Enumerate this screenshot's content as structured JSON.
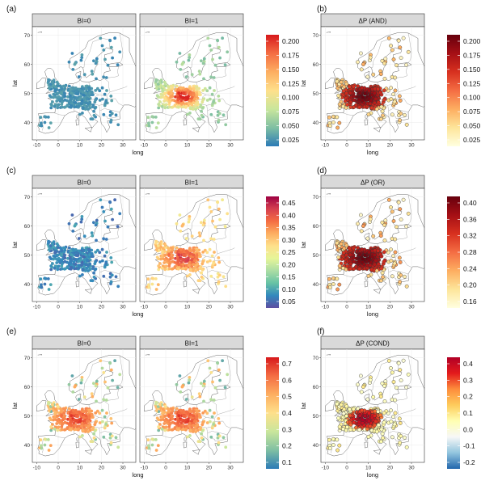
{
  "panels": [
    {
      "id": "a",
      "label": "(a)",
      "type": "scatter-map",
      "facets": [
        "BI=0",
        "BI=1"
      ],
      "xlabel": "long",
      "ylabel": "lat",
      "xlim": [
        -12,
        36
      ],
      "ylim": [
        34,
        73
      ],
      "xticks": [
        "-10",
        "0",
        "10",
        "20",
        "30"
      ],
      "yticks": [
        "40",
        "50",
        "60",
        "70"
      ],
      "colorbar": {
        "ticks": [
          "0.025",
          "0.050",
          "0.075",
          "0.100",
          "0.125",
          "0.150",
          "0.175",
          "0.200"
        ],
        "colors": [
          "#2c7bb6",
          "#7fbfa3",
          "#c9e69c",
          "#fee08b",
          "#fdae61",
          "#f46d43",
          "#d7191c"
        ]
      }
    },
    {
      "id": "b",
      "label": "(b)",
      "type": "scatter-map",
      "facets": [
        "ΔP (AND)"
      ],
      "xlabel": "long",
      "ylabel": "lat",
      "xlim": [
        -12,
        36
      ],
      "ylim": [
        34,
        73
      ],
      "xticks": [
        "-10",
        "0",
        "10",
        "20",
        "30"
      ],
      "yticks": [
        "40",
        "50",
        "60",
        "70"
      ],
      "colorbar": {
        "ticks": [
          "0.025",
          "0.050",
          "0.075",
          "0.100",
          "0.125",
          "0.150",
          "0.175",
          "0.200"
        ],
        "colors": [
          "#ffffe0",
          "#fde59a",
          "#fdae61",
          "#f46d43",
          "#d7301f",
          "#a50f15",
          "#67000d"
        ]
      }
    },
    {
      "id": "c",
      "label": "(c)",
      "type": "scatter-map",
      "facets": [
        "BI=0",
        "BI=1"
      ],
      "xlabel": "long",
      "ylabel": "lat",
      "xlim": [
        -12,
        36
      ],
      "ylim": [
        34,
        73
      ],
      "xticks": [
        "-10",
        "0",
        "10",
        "20",
        "30"
      ],
      "yticks": [
        "40",
        "50",
        "60",
        "70"
      ],
      "colorbar": {
        "ticks": [
          "0.05",
          "0.10",
          "0.15",
          "0.20",
          "0.25",
          "0.30",
          "0.35",
          "0.40",
          "0.45"
        ],
        "colors": [
          "#5e4fa2",
          "#3288bd",
          "#66c2a5",
          "#abdda4",
          "#e6f598",
          "#fee08b",
          "#fdae61",
          "#f46d43",
          "#d53e4f",
          "#9e0142"
        ]
      }
    },
    {
      "id": "d",
      "label": "(d)",
      "type": "scatter-map",
      "facets": [
        "ΔP (OR)"
      ],
      "xlabel": "long",
      "ylabel": "lat",
      "xlim": [
        -12,
        36
      ],
      "ylim": [
        34,
        73
      ],
      "xticks": [
        "-10",
        "0",
        "10",
        "20",
        "30"
      ],
      "yticks": [
        "40",
        "50",
        "60",
        "70"
      ],
      "colorbar": {
        "ticks": [
          "0.16",
          "0.20",
          "0.24",
          "0.28",
          "0.32",
          "0.36",
          "0.40"
        ],
        "colors": [
          "#ffffe0",
          "#fde59a",
          "#fdae61",
          "#f46d43",
          "#d7301f",
          "#a50f15",
          "#67000d"
        ]
      }
    },
    {
      "id": "e",
      "label": "(e)",
      "type": "scatter-map",
      "facets": [
        "BI=0",
        "BI=1"
      ],
      "xlabel": "long",
      "ylabel": "lat",
      "xlim": [
        -12,
        36
      ],
      "ylim": [
        34,
        73
      ],
      "xticks": [
        "-10",
        "0",
        "10",
        "20",
        "30"
      ],
      "yticks": [
        "40",
        "50",
        "60",
        "70"
      ],
      "colorbar": {
        "ticks": [
          "0.1",
          "0.2",
          "0.3",
          "0.4",
          "0.5",
          "0.6",
          "0.7"
        ],
        "colors": [
          "#2c7bb6",
          "#7fbfa3",
          "#c9e69c",
          "#fee08b",
          "#fdae61",
          "#f46d43",
          "#d7191c"
        ]
      }
    },
    {
      "id": "f",
      "label": "(f)",
      "type": "scatter-map",
      "facets": [
        "ΔP (COND)"
      ],
      "xlabel": "long",
      "ylabel": "lat",
      "xlim": [
        -12,
        36
      ],
      "ylim": [
        34,
        73
      ],
      "xticks": [
        "-10",
        "0",
        "10",
        "20",
        "30"
      ],
      "yticks": [
        "40",
        "50",
        "60",
        "70"
      ],
      "colorbar": {
        "ticks": [
          "-0.2",
          "-0.1",
          "0.0",
          "0.1",
          "0.2",
          "0.3",
          "0.4"
        ],
        "colors": [
          "#2166ac",
          "#92c5de",
          "#f7f7f7",
          "#ffffb2",
          "#fecc5c",
          "#fd8d3c",
          "#e31a1c",
          "#b10026"
        ]
      }
    }
  ],
  "chart_data": [
    {
      "type": "scatter",
      "panel": "(a)",
      "facets": [
        "BI=0",
        "BI=1"
      ],
      "xlabel": "long",
      "ylabel": "lat",
      "xlim": [
        -12,
        36
      ],
      "ylim": [
        34,
        73
      ],
      "color_scale": [
        0.025,
        0.2
      ]
    },
    {
      "type": "scatter",
      "panel": "(b)",
      "facets": [
        "ΔP (AND)"
      ],
      "xlabel": "long",
      "ylabel": "lat",
      "xlim": [
        -12,
        36
      ],
      "ylim": [
        34,
        73
      ],
      "color_scale": [
        0.025,
        0.2
      ]
    },
    {
      "type": "scatter",
      "panel": "(c)",
      "facets": [
        "BI=0",
        "BI=1"
      ],
      "xlabel": "long",
      "ylabel": "lat",
      "xlim": [
        -12,
        36
      ],
      "ylim": [
        34,
        73
      ],
      "color_scale": [
        0.05,
        0.45
      ]
    },
    {
      "type": "scatter",
      "panel": "(d)",
      "facets": [
        "ΔP (OR)"
      ],
      "xlabel": "long",
      "ylabel": "lat",
      "xlim": [
        -12,
        36
      ],
      "ylim": [
        34,
        73
      ],
      "color_scale": [
        0.16,
        0.4
      ]
    },
    {
      "type": "scatter",
      "panel": "(e)",
      "facets": [
        "BI=0",
        "BI=1"
      ],
      "xlabel": "long",
      "ylabel": "lat",
      "xlim": [
        -12,
        36
      ],
      "ylim": [
        34,
        73
      ],
      "color_scale": [
        0.1,
        0.7
      ]
    },
    {
      "type": "scatter",
      "panel": "(f)",
      "facets": [
        "ΔP (COND)"
      ],
      "xlabel": "long",
      "ylabel": "lat",
      "xlim": [
        -12,
        36
      ],
      "ylim": [
        34,
        73
      ],
      "color_scale": [
        -0.2,
        0.4
      ]
    }
  ]
}
